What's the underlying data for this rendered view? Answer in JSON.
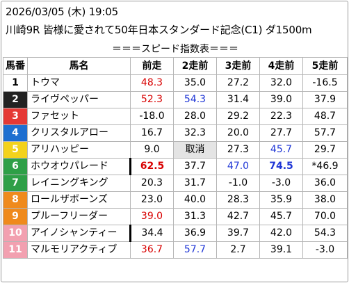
{
  "header": {
    "datetime": "2026/03/05 (木) 19:05",
    "race": "川崎9R 皆様に愛されて50年日本スタンダード記念(C1) ダ1500m"
  },
  "subtitle": "＝＝＝スピード指数表＝＝＝",
  "table": {
    "columns": [
      "馬番",
      "馬名",
      "前走",
      "2走前",
      "3走前",
      "4走前",
      "5走前"
    ],
    "rows": [
      {
        "num": "1",
        "name": "トウマ",
        "cells": [
          "48.3",
          "35.0",
          "27.2",
          "32.0",
          "-16.5"
        ]
      },
      {
        "num": "2",
        "name": "ライヴペッパー",
        "cells": [
          "52.3",
          "54.3",
          "31.4",
          "39.0",
          "37.9"
        ]
      },
      {
        "num": "3",
        "name": "ファセット",
        "cells": [
          "-18.0",
          "28.0",
          "29.2",
          "22.3",
          "48.7"
        ]
      },
      {
        "num": "4",
        "name": "クリスタルアロー",
        "cells": [
          "16.7",
          "32.3",
          "20.0",
          "27.7",
          "57.7"
        ]
      },
      {
        "num": "5",
        "name": "アリハッピー",
        "cells": [
          "9.0",
          "取消",
          "27.3",
          "45.7",
          "29.7"
        ]
      },
      {
        "num": "6",
        "name": "ホウオウパレード",
        "cells": [
          "62.5",
          "37.7",
          "47.0",
          "74.5",
          "*46.9"
        ]
      },
      {
        "num": "7",
        "name": "レイニングキング",
        "cells": [
          "20.3",
          "31.7",
          "-1.0",
          "-3.0",
          "36.0"
        ]
      },
      {
        "num": "8",
        "name": "ロールザボーンズ",
        "cells": [
          "23.0",
          "40.0",
          "28.3",
          "35.9",
          "38.0"
        ]
      },
      {
        "num": "9",
        "name": "プルーフリーダー",
        "cells": [
          "39.0",
          "31.3",
          "42.7",
          "45.7",
          "70.0"
        ]
      },
      {
        "num": "10",
        "name": "アイノシャンティー",
        "cells": [
          "34.4",
          "36.9",
          "39.7",
          "42.0",
          "54.3"
        ]
      },
      {
        "num": "11",
        "name": "マルモリアクティブ",
        "cells": [
          "36.7",
          "57.7",
          "2.7",
          "39.1",
          "-3.0"
        ]
      }
    ]
  },
  "colors": {
    "frame_colors": [
      "#ffffff",
      "#222222",
      "#e53935",
      "#1e6fd0",
      "#f3d21c",
      "#2e9f47",
      "#ef8a1c",
      "#ef8a1c",
      "#c060d0",
      "#c060d0",
      "#f2a0b0",
      "#f2a0b0"
    ],
    "red_text": "#d80000",
    "blue_text": "#1f36d6",
    "cancel_bg": "#e4e4e4"
  }
}
